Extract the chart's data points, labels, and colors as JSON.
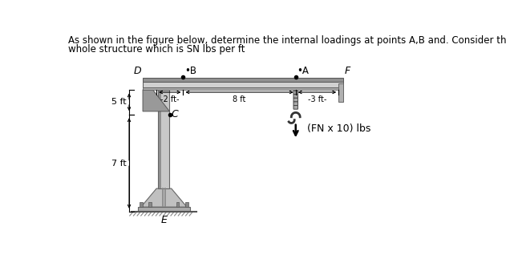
{
  "title_line1": "As shown in the figure below, determine the internal loadings at points A,B and. Consider the uniform weight of the",
  "title_line2": "whole structure which is SN lbs per ft",
  "title_color": "#000000",
  "title_fontsize": 8.5,
  "bg_color": "#ffffff",
  "beam_face_color": "#c8c8c8",
  "beam_top_color": "#909090",
  "beam_edge_color": "#555555",
  "col_face_color": "#bbbbbb",
  "col_edge_color": "#666666",
  "brace_face_color": "#aaaaaa",
  "base_face_color": "#aaaaaa",
  "plate_face_color": "#999999",
  "ground_color": "#555555",
  "label_D": "D",
  "label_B": "B",
  "label_A": "A",
  "label_F": "F",
  "label_C": "C",
  "label_E": "E",
  "dim_2ft": "-2 ft-",
  "dim_8ft": "8 ft",
  "dim_3ft": "-3 ft-",
  "dim_5ft": "5 ft",
  "dim_7ft": "7 ft",
  "load_label": "(FN x 10) lbs"
}
